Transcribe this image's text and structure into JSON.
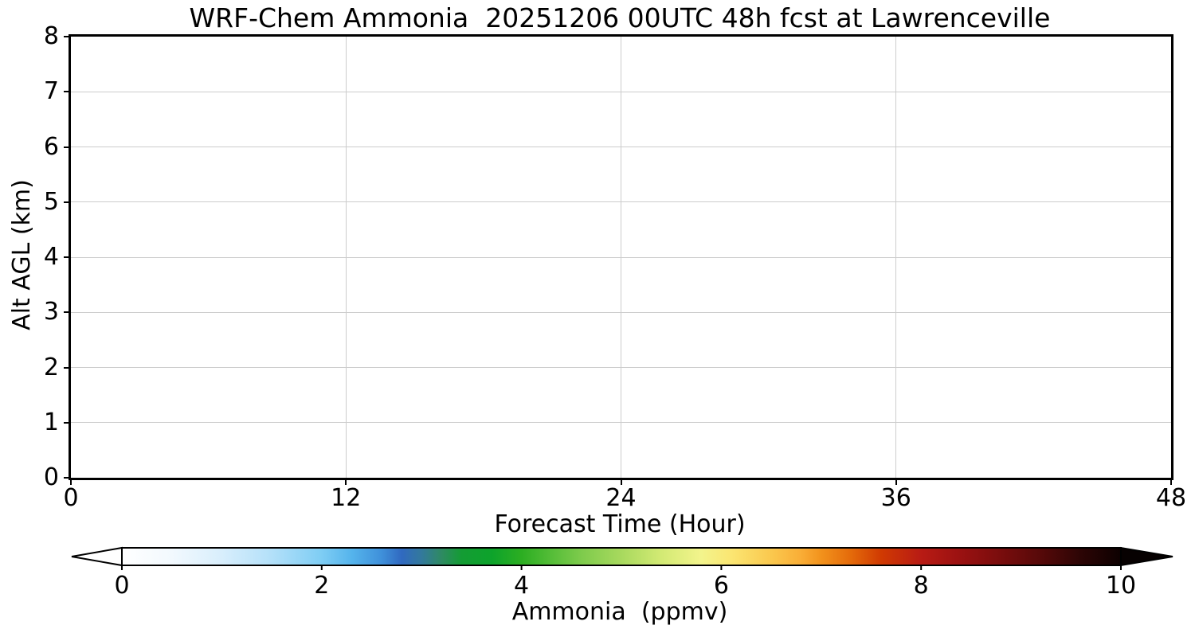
{
  "title": "WRF-Chem Ammonia  20251206 00UTC 48h fcst at Lawrenceville",
  "chart_data": {
    "type": "heatmap",
    "title": "WRF-Chem Ammonia  20251206 00UTC 48h fcst at Lawrenceville",
    "xlabel": "Forecast Time (Hour)",
    "ylabel": "Alt AGL (km)",
    "xlim": [
      0,
      48
    ],
    "ylim": [
      0,
      8
    ],
    "xticks": [
      0,
      12,
      24,
      36,
      48
    ],
    "yticks": [
      0,
      1,
      2,
      3,
      4,
      5,
      6,
      7,
      8
    ],
    "grid": true,
    "values_note": "plot area is entirely blank/white - no ammonia shading or contours are rendered in the panel",
    "series": [],
    "colorbar": {
      "label": "Ammonia  (ppmv)",
      "min": 0,
      "max": 10,
      "ticks": [
        0,
        2,
        4,
        6,
        8,
        10
      ],
      "extend": "both",
      "stops": [
        {
          "pos": 0.0,
          "color": "#ffffff"
        },
        {
          "pos": 0.05,
          "color": "#f2f9fe"
        },
        {
          "pos": 0.1,
          "color": "#d8eefc"
        },
        {
          "pos": 0.15,
          "color": "#b3e0f9"
        },
        {
          "pos": 0.2,
          "color": "#7ecdf4"
        },
        {
          "pos": 0.23,
          "color": "#55b4ec"
        },
        {
          "pos": 0.26,
          "color": "#3f90da"
        },
        {
          "pos": 0.28,
          "color": "#3069c0"
        },
        {
          "pos": 0.3,
          "color": "#33799c"
        },
        {
          "pos": 0.32,
          "color": "#2e8a62"
        },
        {
          "pos": 0.34,
          "color": "#149c34"
        },
        {
          "pos": 0.37,
          "color": "#0da32b"
        },
        {
          "pos": 0.4,
          "color": "#2cae22"
        },
        {
          "pos": 0.43,
          "color": "#55bd38"
        },
        {
          "pos": 0.46,
          "color": "#7ecb4c"
        },
        {
          "pos": 0.5,
          "color": "#a8d95e"
        },
        {
          "pos": 0.54,
          "color": "#d3ea74"
        },
        {
          "pos": 0.58,
          "color": "#f3f48c"
        },
        {
          "pos": 0.61,
          "color": "#fbe672"
        },
        {
          "pos": 0.65,
          "color": "#fac84e"
        },
        {
          "pos": 0.68,
          "color": "#f9ad36"
        },
        {
          "pos": 0.7,
          "color": "#f2921c"
        },
        {
          "pos": 0.73,
          "color": "#e46a0a"
        },
        {
          "pos": 0.76,
          "color": "#d03a02"
        },
        {
          "pos": 0.8,
          "color": "#b81b14"
        },
        {
          "pos": 0.84,
          "color": "#9a1111"
        },
        {
          "pos": 0.88,
          "color": "#790d0d"
        },
        {
          "pos": 0.92,
          "color": "#560909"
        },
        {
          "pos": 0.96,
          "color": "#2c0505"
        },
        {
          "pos": 1.0,
          "color": "#0d0101"
        }
      ]
    }
  },
  "colors": {
    "background": "#ffffff",
    "frame": "#000000",
    "grid": "#cccccc",
    "text": "#000000",
    "colorbar_left_arrow": "#ffffff",
    "colorbar_right_arrow": "#070101"
  }
}
